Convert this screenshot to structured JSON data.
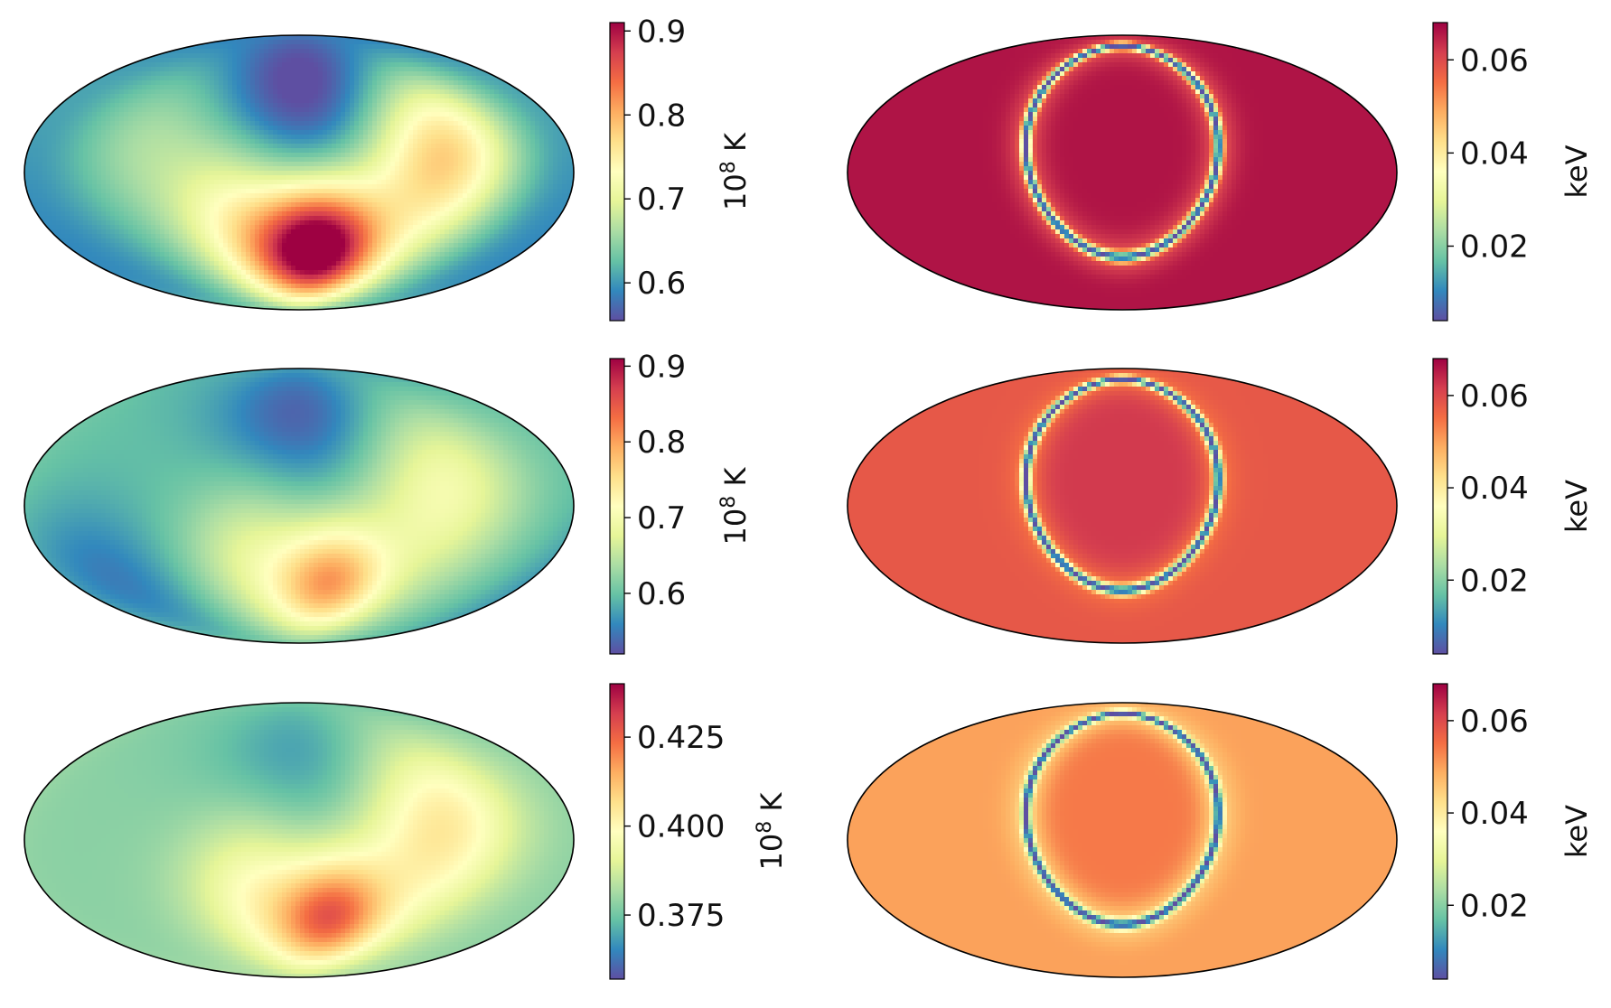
{
  "chart_data": [
    {
      "type": "heatmap",
      "projection": "mollweide",
      "panel": "row1-left",
      "colormap": "Spectral_r",
      "colorbar": {
        "label": "10",
        "label_sup": "8",
        "label_tail": " K",
        "vmin": 0.555,
        "vmax": 0.91,
        "ticks": [
          {
            "value": 0.6,
            "label": "0.6"
          },
          {
            "value": 0.7,
            "label": "0.7"
          },
          {
            "value": 0.8,
            "label": "0.8"
          },
          {
            "value": 0.9,
            "label": "0.9"
          }
        ]
      },
      "field": {
        "kind": "temperature",
        "base": 0.58,
        "blobs": [
          {
            "lon": 0,
            "lat": 50,
            "sigma": 32,
            "amp": -0.05
          },
          {
            "lon": 15,
            "lat": -42,
            "sigma": 25,
            "amp": 0.32
          },
          {
            "lon": -40,
            "lat": -28,
            "sigma": 30,
            "amp": 0.13
          },
          {
            "lon": 80,
            "lat": -5,
            "sigma": 35,
            "amp": 0.14
          },
          {
            "lon": 110,
            "lat": 20,
            "sigma": 30,
            "amp": 0.1
          },
          {
            "lon": -100,
            "lat": 15,
            "sigma": 40,
            "amp": 0.08
          }
        ]
      }
    },
    {
      "type": "heatmap",
      "projection": "mollweide",
      "panel": "row1-right",
      "colormap": "Spectral_r",
      "colorbar": {
        "label": "keV",
        "vmin": 0.004,
        "vmax": 0.068,
        "ticks": [
          {
            "value": 0.02,
            "label": "0.02"
          },
          {
            "value": 0.04,
            "label": "0.04"
          },
          {
            "value": 0.06,
            "label": "0.06"
          }
        ]
      },
      "field": {
        "kind": "ring",
        "inner": 0.066,
        "outer": 0.066,
        "ring_min": 0.004,
        "ring_width": 0.035,
        "halo": 0.06
      }
    },
    {
      "type": "heatmap",
      "projection": "mollweide",
      "panel": "row2-left",
      "colormap": "Spectral_r",
      "colorbar": {
        "label": "10",
        "label_sup": "8",
        "label_tail": " K",
        "vmin": 0.52,
        "vmax": 0.91,
        "ticks": [
          {
            "value": 0.6,
            "label": "0.6"
          },
          {
            "value": 0.7,
            "label": "0.7"
          },
          {
            "value": 0.8,
            "label": "0.8"
          },
          {
            "value": 0.9,
            "label": "0.9"
          }
        ]
      },
      "field": {
        "kind": "temperature",
        "base": 0.6,
        "blobs": [
          {
            "lon": 0,
            "lat": 50,
            "sigma": 32,
            "amp": -0.07
          },
          {
            "lon": 25,
            "lat": -42,
            "sigma": 22,
            "amp": 0.17
          },
          {
            "lon": -30,
            "lat": -28,
            "sigma": 30,
            "amp": 0.08
          },
          {
            "lon": 80,
            "lat": -5,
            "sigma": 35,
            "amp": 0.07
          },
          {
            "lon": 110,
            "lat": 20,
            "sigma": 30,
            "amp": 0.05
          },
          {
            "lon": -140,
            "lat": -40,
            "sigma": 30,
            "amp": -0.05
          }
        ]
      }
    },
    {
      "type": "heatmap",
      "projection": "mollweide",
      "panel": "row2-right",
      "colormap": "Spectral_r",
      "colorbar": {
        "label": "keV",
        "vmin": 0.004,
        "vmax": 0.068,
        "ticks": [
          {
            "value": 0.02,
            "label": "0.02"
          },
          {
            "value": 0.04,
            "label": "0.04"
          },
          {
            "value": 0.06,
            "label": "0.06"
          }
        ]
      },
      "field": {
        "kind": "ring",
        "inner": 0.062,
        "outer": 0.058,
        "ring_min": 0.004,
        "ring_width": 0.035,
        "halo": 0.055
      }
    },
    {
      "type": "heatmap",
      "projection": "mollweide",
      "panel": "row3-left",
      "colormap": "Spectral_r",
      "colorbar": {
        "label": "10",
        "label_sup": "8",
        "label_tail": " K",
        "vmin": 0.357,
        "vmax": 0.44,
        "ticks": [
          {
            "value": 0.375,
            "label": "0.375"
          },
          {
            "value": 0.4,
            "label": "0.400"
          },
          {
            "value": 0.425,
            "label": "0.425"
          }
        ]
      },
      "field": {
        "kind": "temperature",
        "base": 0.378,
        "blobs": [
          {
            "lon": 0,
            "lat": 45,
            "sigma": 35,
            "amp": -0.01
          },
          {
            "lon": 25,
            "lat": -42,
            "sigma": 22,
            "amp": 0.04
          },
          {
            "lon": -30,
            "lat": -28,
            "sigma": 30,
            "amp": 0.02
          },
          {
            "lon": 80,
            "lat": -5,
            "sigma": 35,
            "amp": 0.02
          },
          {
            "lon": 110,
            "lat": 20,
            "sigma": 30,
            "amp": 0.012
          }
        ]
      }
    },
    {
      "type": "heatmap",
      "projection": "mollweide",
      "panel": "row3-right",
      "colormap": "Spectral_r",
      "colorbar": {
        "label": "keV",
        "vmin": 0.004,
        "vmax": 0.068,
        "ticks": [
          {
            "value": 0.02,
            "label": "0.02"
          },
          {
            "value": 0.04,
            "label": "0.04"
          },
          {
            "value": 0.06,
            "label": "0.06"
          }
        ]
      },
      "field": {
        "kind": "ring",
        "inner": 0.054,
        "outer": 0.05,
        "ring_min": 0.004,
        "ring_width": 0.035,
        "halo": 0.045
      }
    }
  ]
}
